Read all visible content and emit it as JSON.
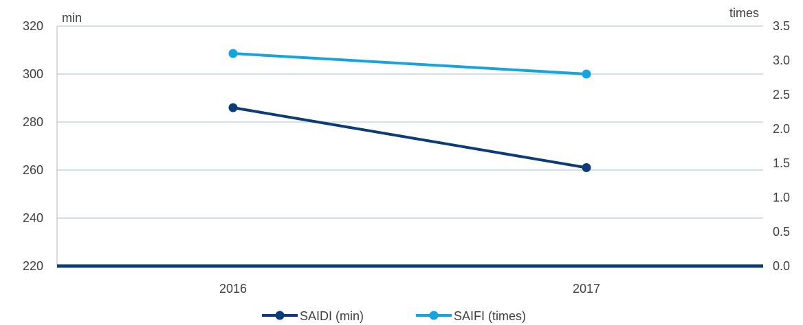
{
  "chart_data": {
    "type": "line",
    "categories": [
      "2016",
      "2017"
    ],
    "series": [
      {
        "name": "SAIDI (min)",
        "axis": "left",
        "values": [
          286,
          261
        ],
        "color": "#0c3c78"
      },
      {
        "name": "SAIFI (times)",
        "axis": "right",
        "values": [
          3.1,
          2.8
        ],
        "color": "#16a4e0"
      }
    ],
    "left_axis": {
      "unit": "min",
      "ylim": [
        220,
        320
      ],
      "ticks": [
        "320",
        "300",
        "280",
        "260",
        "240",
        "220"
      ]
    },
    "right_axis": {
      "unit": "times",
      "ylim": [
        0,
        3.5
      ],
      "ticks": [
        "3.5",
        "3.0",
        "2.5",
        "2.0",
        "1.5",
        "1.0",
        "0.5",
        "0.0"
      ]
    },
    "grid": true,
    "legend": "bottom-center",
    "colors": {
      "gridline": "#c5d3e6",
      "baseline": "#0c3c78",
      "text": "#404040"
    }
  }
}
